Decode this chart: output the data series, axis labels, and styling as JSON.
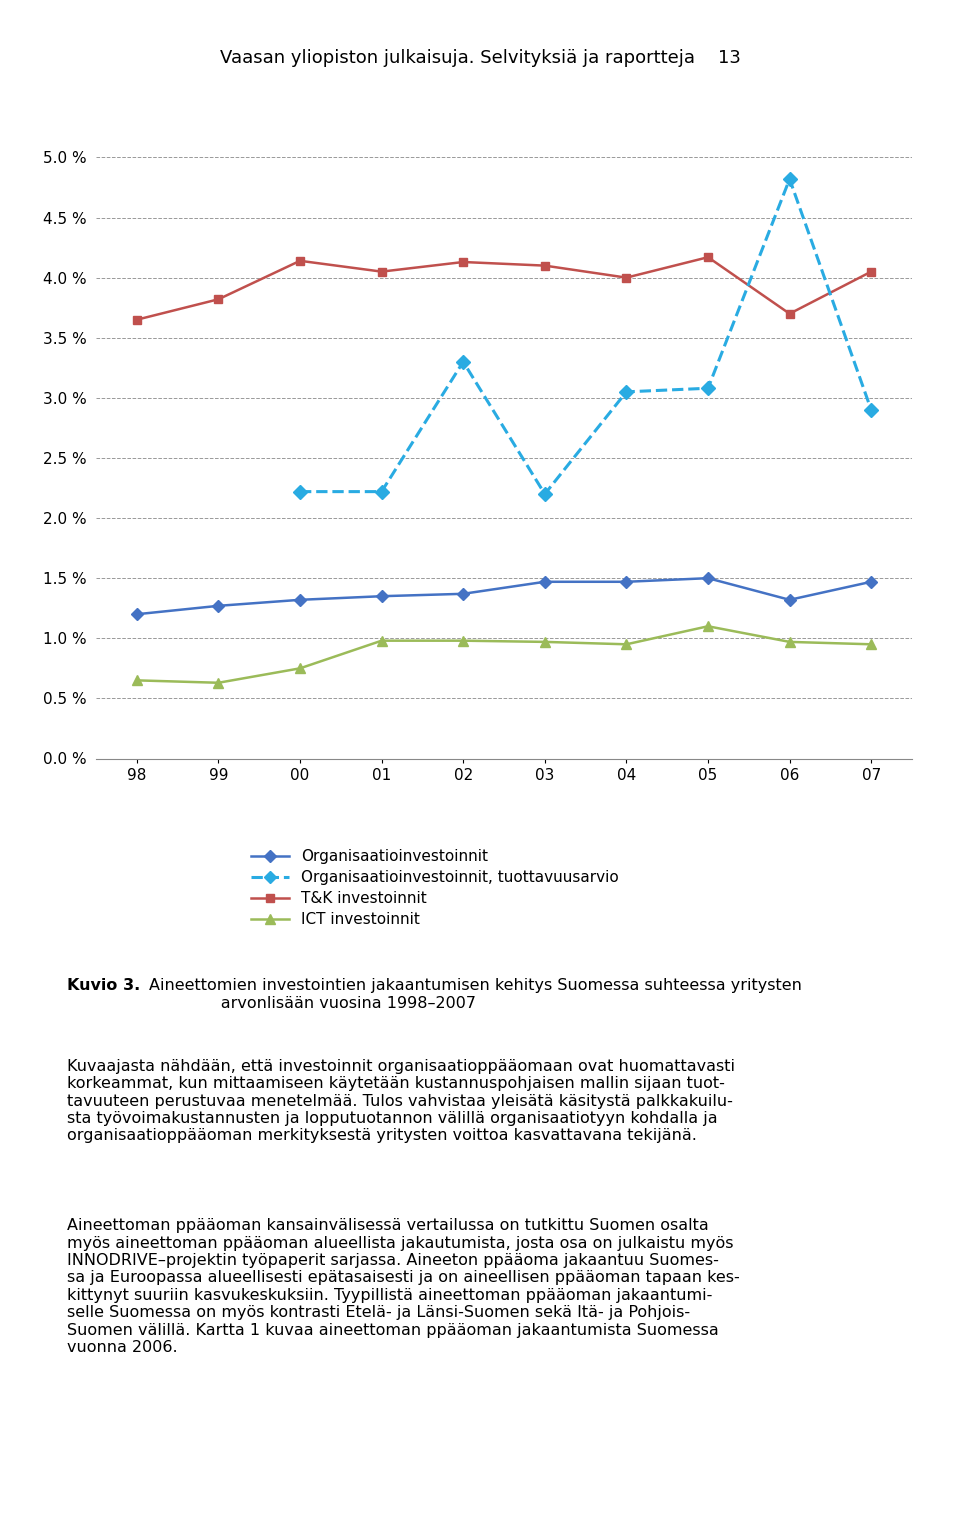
{
  "x_positions": [
    0,
    1,
    2,
    3,
    4,
    5,
    6,
    7,
    8,
    9
  ],
  "year_labels": [
    "98",
    "99",
    "00",
    "01",
    "02",
    "03",
    "04",
    "05",
    "06",
    "07"
  ],
  "organisaatio": [
    1.2,
    1.27,
    1.32,
    1.35,
    1.37,
    1.47,
    1.47,
    1.5,
    1.32,
    1.47
  ],
  "organisaatio_tuottavuus": [
    null,
    null,
    2.22,
    2.22,
    3.3,
    2.2,
    3.05,
    3.08,
    4.82,
    2.9
  ],
  "tk": [
    3.65,
    3.82,
    4.14,
    4.05,
    4.13,
    4.1,
    4.0,
    4.17,
    3.7,
    4.05
  ],
  "ict": [
    0.65,
    0.63,
    0.75,
    0.98,
    0.98,
    0.97,
    0.95,
    1.1,
    0.97,
    0.95
  ],
  "org_color": "#4472C4",
  "org_tuott_color": "#29ABE2",
  "tk_color": "#C0504D",
  "ict_color": "#9BBB59",
  "title_text": "Vaasan yliopiston julkaisuja. Selvityksiä ja raportteja",
  "page_number": "13",
  "legend_org": "Organisaatioinvestoinnit",
  "legend_org_tuott": "Organisaatioinvestoinnit, tuottavuusarvio",
  "legend_tk": "T&K investoinnit",
  "legend_ict": "ICT investoinnit",
  "ylabel_ticks": [
    "0.0 %",
    "0.5 %",
    "1.0 %",
    "1.5 %",
    "2.0 %",
    "2.5 %",
    "3.0 %",
    "3.5 %",
    "4.0 %",
    "4.5 %",
    "5.0 %"
  ],
  "ytick_vals": [
    0.0,
    0.5,
    1.0,
    1.5,
    2.0,
    2.5,
    3.0,
    3.5,
    4.0,
    4.5,
    5.0
  ],
  "ylim": [
    0.0,
    5.3
  ],
  "kuvio_label": "Kuvio 3.",
  "kuvio_title": "Aineettomien investointien jakaantumisen kehitys Suomessa suhteessa yritysten arvonlisään vuosina 1998–2007",
  "para1": "Kuvaajasta nähdään, että investoinnit organisaatioppääomaan ovat huomattavasti korkeammat, kun mittaamiseen käytetään kustannuspohjaisen mallin sijaan tuottavuuteen perustuvaa menetelmää. Tulos vahvistaa yleisätä käsitystä palkkakuilusta työvoimakustannusten ja lopputuotannon välillä organisaatiotyon kohdalla ja organisaatioppääoman merkityksestä yritysten voittoa kasvattavana tekijänä.",
  "para2": "Aineettoman ppääoman kansainvälisessä vertailussa on tutkittu Suomen osalta myös aineettoman ppääoman alueellista jakautumista, josta osa on julkaistu myös INNODRIVE–projektin työpaperit sarjassa. Aineeton ppääoma jakaantuu Suomessa ja Euroopassa alueellisesti epätasaisesti ja on aineellisen ppääoman tapaan keskittynyt suuriin kasvukeskuksiin. Tyypillistä aineettoman ppääoman jakaantumiselle Suomessa on myös kontrasti Etelä- ja Länsi-Suomen sekä Itä- ja Pohjois-Suomen välillä. Kartta 1 kuvaa aineettoman ppääoman jakaantumista Suomessa vuonna 2006."
}
